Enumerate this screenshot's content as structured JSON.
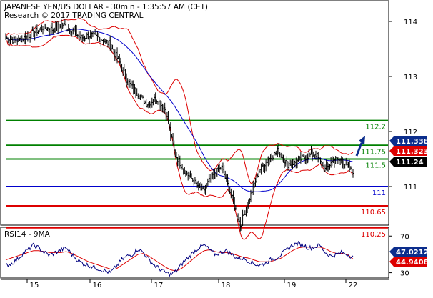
{
  "header": {
    "title": "JAPANESE YEN/US DOLLAR - 30min - 1:35:57 AM (CET)",
    "subtitle": "Research © 2017 TRADING CENTRAL"
  },
  "rsi_label": "RSI14 - 9MA",
  "colors": {
    "price": "#000000",
    "bollinger": "#dd0000",
    "ma": "#0000cc",
    "support_line": "#0000cc",
    "resistance": "#008000",
    "support": "#dd0000",
    "rsi": "#000080",
    "rsi_ma": "#dd0000",
    "arrow": "#0b2d8c",
    "tag_blue": "#0b2d8c",
    "tag_red": "#dd0000",
    "tag_black": "#000000"
  },
  "chart_data": [
    {
      "type": "ohlc",
      "ylim": [
        109.85,
        114.3
      ],
      "grid": false,
      "x_ticks": [
        "15",
        "16",
        "17",
        "18",
        "19",
        "22"
      ],
      "y_ticks": [
        "114",
        "113",
        "112",
        "111"
      ],
      "levels": [
        {
          "value": 112.2,
          "label": "112.2",
          "kind": "resistance"
        },
        {
          "value": 111.75,
          "label": "111.75",
          "kind": "resistance"
        },
        {
          "value": 111.5,
          "label": "111.5",
          "kind": "resistance"
        },
        {
          "value": 111.0,
          "label": "111",
          "kind": "pivot"
        },
        {
          "value": 110.65,
          "label": "110.65",
          "kind": "support"
        },
        {
          "value": 110.25,
          "label": "110.25",
          "kind": "support"
        }
      ],
      "price_tags": [
        {
          "value": "111.338",
          "color": "blue"
        },
        {
          "value": "111.323",
          "color": "red"
        },
        {
          "value": "111.24",
          "color": "black"
        }
      ],
      "series": [
        {
          "values": [
            113.7,
            113.65,
            113.7,
            113.8,
            113.9,
            113.85,
            113.95,
            113.85,
            113.7,
            113.75,
            113.7,
            113.6,
            113.3,
            112.9,
            112.7,
            112.5,
            112.6,
            112.4,
            111.6,
            111.3,
            111.1,
            110.9,
            111.2,
            111.35,
            110.85,
            110.3,
            110.8,
            111.3,
            111.5,
            111.65,
            111.4,
            111.45,
            111.55,
            111.6,
            111.3,
            111.5,
            111.45,
            111.24
          ]
        }
      ]
    },
    {
      "type": "line",
      "ylim": [
        25,
        78
      ],
      "y_ticks": [
        "70",
        "30"
      ],
      "series": [
        {
          "values": [
            38,
            40,
            44,
            50,
            55,
            60,
            57,
            52,
            49,
            52,
            55,
            57,
            50,
            44,
            40,
            38,
            36,
            34,
            32,
            30,
            36,
            44,
            48,
            50,
            56,
            52,
            44,
            38,
            34,
            30,
            28,
            32,
            40,
            46,
            52,
            57,
            60,
            55,
            50,
            52,
            54,
            50,
            46,
            46,
            43,
            40,
            38,
            40,
            44,
            46,
            50,
            55,
            60,
            62,
            60,
            57,
            58,
            60,
            52,
            48,
            50,
            52,
            50,
            47
          ]
        },
        {
          "values": [
            44,
            46,
            48,
            50,
            52,
            54,
            54,
            53,
            52,
            52,
            52,
            53,
            51,
            48,
            45,
            42,
            40,
            38,
            36,
            34,
            34,
            38,
            42,
            46,
            50,
            51,
            48,
            44,
            40,
            36,
            33,
            32,
            35,
            40,
            45,
            50,
            54,
            55,
            53,
            52,
            52,
            51,
            49,
            47,
            46,
            44,
            42,
            42,
            42,
            44,
            46,
            50,
            54,
            57,
            58,
            58,
            58,
            58,
            56,
            53,
            51,
            51,
            50,
            44.9408
          ]
        }
      ],
      "tags": [
        {
          "value": "47.0212",
          "color": "blue"
        },
        {
          "value": "44.9408",
          "color": "red"
        }
      ]
    }
  ]
}
